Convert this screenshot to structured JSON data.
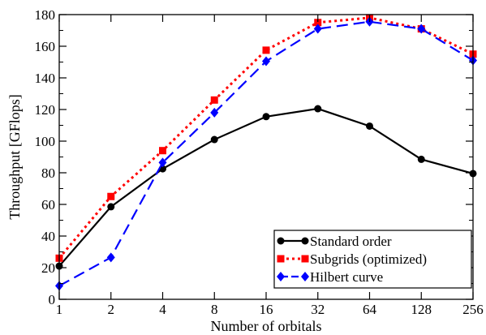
{
  "chart_data": {
    "type": "line",
    "title": "",
    "xlabel": "Number of orbitals",
    "ylabel": "Throughput [GFlops]",
    "x_scale": "log2",
    "categories": [
      "1",
      "2",
      "4",
      "8",
      "16",
      "32",
      "64",
      "128",
      "256"
    ],
    "x": [
      1,
      2,
      4,
      8,
      16,
      32,
      64,
      128,
      256
    ],
    "ylim": [
      0,
      180
    ],
    "yticks": [
      "0",
      "20",
      "40",
      "60",
      "80",
      "100",
      "120",
      "140",
      "160",
      "180"
    ],
    "grid": false,
    "legend_position": "bottom-right",
    "series": [
      {
        "name": "Standard order",
        "color": "#000000",
        "line_style": "solid",
        "marker": "circle",
        "values": [
          21,
          58.5,
          82.5,
          101,
          115.5,
          120.5,
          109.5,
          88.5,
          79.5
        ]
      },
      {
        "name": "Subgrids (optimized)",
        "color": "#ff0000",
        "line_style": "dotted",
        "marker": "square",
        "values": [
          26,
          65,
          94,
          126,
          157.5,
          175,
          178,
          171,
          155
        ]
      },
      {
        "name": "Hilbert curve",
        "color": "#0000ff",
        "line_style": "dashed",
        "marker": "diamond",
        "values": [
          8.5,
          26.5,
          86.5,
          118,
          150.5,
          171,
          175.5,
          171,
          151
        ]
      }
    ]
  }
}
